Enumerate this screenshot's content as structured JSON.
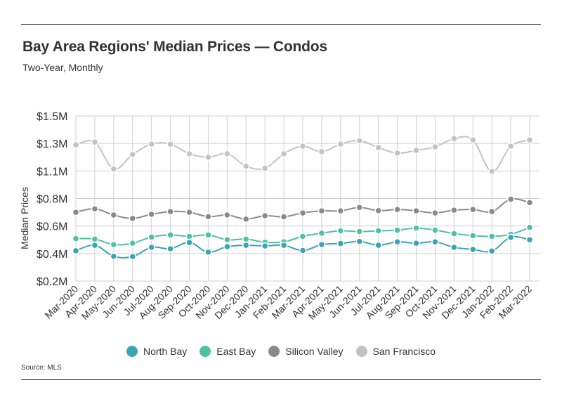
{
  "header": {
    "title": "Bay Area Regions' Median Prices — Condos",
    "subtitle": "Two-Year, Monthly"
  },
  "footer": {
    "source": "Source: MLS"
  },
  "chart_data": {
    "type": "line",
    "ylabel": "Median Prices",
    "xlabel": "",
    "grid": true,
    "legend_position": "bottom",
    "yticks": [
      200000,
      400000,
      600000,
      800000,
      1100000,
      1300000,
      1500000
    ],
    "ytick_labels": [
      "$0.2M",
      "$0.4M",
      "$0.6M",
      "$0.8M",
      "$1.1M",
      "$1.3M",
      "$1.5M"
    ],
    "categories": [
      "Mar-2020",
      "Apr-2020",
      "May-2020",
      "Jun-2020",
      "Jul-2020",
      "Aug-2020",
      "Sep-2020",
      "Oct-2020",
      "Nov-2020",
      "Dec-2020",
      "Jan-2021",
      "Feb-2021",
      "Mar-2021",
      "Apr-2021",
      "May-2021",
      "Jun-2021",
      "Jul-2021",
      "Aug-2021",
      "Sep-2021",
      "Oct-2021",
      "Nov-2021",
      "Dec-2021",
      "Jan-2022",
      "Feb-2022",
      "Mar-2022"
    ],
    "series": [
      {
        "name": "North Bay",
        "color": "#3aa5b4",
        "values": [
          420000,
          460000,
          380000,
          378000,
          445000,
          435000,
          480000,
          410000,
          450000,
          460000,
          455000,
          460000,
          422000,
          465000,
          473000,
          488000,
          460000,
          485000,
          475000,
          485000,
          445000,
          430000,
          418000,
          518000,
          500000
        ]
      },
      {
        "name": "East Bay",
        "color": "#4fc1a2",
        "values": [
          508000,
          505000,
          465000,
          475000,
          520000,
          535000,
          525000,
          535000,
          500000,
          505000,
          482000,
          485000,
          525000,
          548000,
          565000,
          560000,
          565000,
          570000,
          585000,
          570000,
          545000,
          530000,
          525000,
          540000,
          590000
        ]
      },
      {
        "name": "Silicon Valley",
        "color": "#8a8a8a",
        "values": [
          700000,
          725000,
          680000,
          655000,
          685000,
          705000,
          700000,
          668000,
          680000,
          650000,
          675000,
          667000,
          695000,
          710000,
          710000,
          735000,
          712000,
          720000,
          710000,
          695000,
          715000,
          720000,
          705000,
          795000,
          770000
        ]
      },
      {
        "name": "San Francisco",
        "color": "#c3c3c3",
        "values": [
          1290000,
          1310000,
          1115000,
          1220000,
          1295000,
          1295000,
          1225000,
          1200000,
          1225000,
          1135000,
          1120000,
          1225000,
          1280000,
          1240000,
          1295000,
          1320000,
          1270000,
          1230000,
          1250000,
          1275000,
          1335000,
          1325000,
          1095000,
          1280000,
          1325000
        ]
      }
    ]
  }
}
